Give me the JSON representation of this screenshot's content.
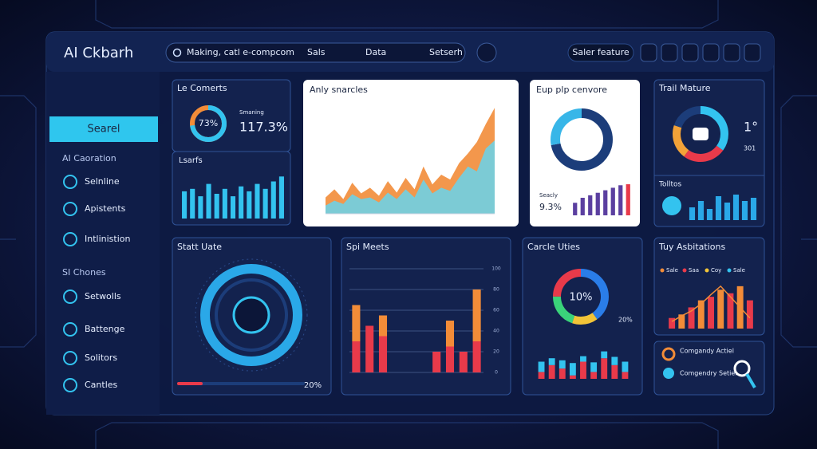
{
  "header": {
    "title": "AI Ckbarh",
    "search": "Making, catl e-compcom",
    "nav": [
      "Sals",
      "Data",
      "Setserh"
    ],
    "button": "Saler feature"
  },
  "sidebar": {
    "active": "Searel",
    "groups": [
      {
        "title": "AI Caoration",
        "items": [
          "Selnline",
          "Apistents",
          "Intlinistion"
        ]
      },
      {
        "title": "SI Chones",
        "items": [
          "Setwolls",
          "Battenge",
          "Solitors",
          "Cantles"
        ]
      }
    ]
  },
  "comments": {
    "title": "Le Comerts",
    "donut": {
      "value": 73,
      "label": "73%"
    },
    "stat_label": "Smaning",
    "stat_value": "117.3%",
    "bars_title": "Lsarfs",
    "bars": {
      "values": [
        55,
        60,
        45,
        70,
        50,
        60,
        45,
        65,
        55,
        70,
        60,
        75,
        85
      ],
      "ylim": [
        0,
        100
      ],
      "color": "#33c3ef"
    }
  },
  "analytics": {
    "title": "Anly snarcles",
    "type": "area",
    "ylim": [
      0,
      140
    ],
    "series": [
      {
        "color": "#f28c38",
        "values": [
          20,
          30,
          18,
          38,
          25,
          32,
          22,
          40,
          26,
          44,
          30,
          58,
          36,
          48,
          42,
          62,
          74,
          88,
          110,
          130
        ]
      },
      {
        "color": "#6fd0e4",
        "values": [
          10,
          16,
          12,
          24,
          18,
          20,
          14,
          26,
          18,
          30,
          20,
          42,
          25,
          32,
          28,
          44,
          58,
          52,
          80,
          90
        ]
      }
    ]
  },
  "convert": {
    "title": "Eup plp cenvore",
    "donut": {
      "values": [
        72,
        28
      ],
      "colors": [
        "#1c3d7a",
        "#38b6e8"
      ]
    },
    "stat_label": "Seacly",
    "stat_value": "9.3%",
    "bars": {
      "values": [
        25,
        35,
        40,
        45,
        50,
        55,
        60,
        62
      ],
      "ylim": [
        0,
        70
      ],
      "colors": [
        "#5b3fa0",
        "#5b3fa0",
        "#5b3fa0",
        "#5b3fa0",
        "#5b3fa0",
        "#5b3fa0",
        "#5b3fa0",
        "#e83a4a"
      ]
    }
  },
  "trail": {
    "title": "Trail Mature",
    "donut": {
      "values": [
        35,
        25,
        20,
        20
      ],
      "colors": [
        "#33c3ef",
        "#e83a4a",
        "#f2a238",
        "#1c3d7a"
      ]
    },
    "stat_values": [
      "1°",
      "301"
    ],
    "bars_title": "Tolltos",
    "bars": {
      "values": [
        40,
        60,
        35,
        75,
        55,
        80,
        60,
        70
      ],
      "ylim": [
        0,
        100
      ],
      "color": "#2aa8e8"
    }
  },
  "status": {
    "title": "Statt Uate",
    "gauge": {
      "value": 20,
      "label": "20%"
    }
  },
  "meets": {
    "title": "Spi Meets",
    "ylim": [
      0,
      100
    ],
    "yticks": [
      0,
      20,
      40,
      60,
      80,
      100
    ],
    "series": [
      {
        "color": "#e83a4a",
        "values": [
          30,
          45,
          35,
          0,
          0,
          0,
          20,
          25,
          20,
          30
        ]
      },
      {
        "color": "#f28c38",
        "values": [
          35,
          0,
          20,
          0,
          0,
          0,
          0,
          25,
          0,
          50
        ]
      }
    ]
  },
  "cycle": {
    "title": "Carcle Uties",
    "donut": {
      "values": [
        40,
        15,
        20,
        25
      ],
      "colors": [
        "#2a7de8",
        "#f2c438",
        "#3ad47a",
        "#e83a4a"
      ]
    },
    "center": "10%",
    "side": "20%",
    "ylim": [
      0,
      50
    ],
    "series": [
      {
        "color": "#e83a4a",
        "values": [
          10,
          20,
          15,
          5,
          25,
          10,
          30,
          20,
          10
        ]
      },
      {
        "color": "#33c3ef",
        "values": [
          15,
          10,
          12,
          18,
          8,
          14,
          10,
          12,
          15
        ]
      }
    ]
  },
  "aspirations": {
    "title": "Tuy Asbitations",
    "legend": [
      {
        "name": "Sale",
        "color": "#f28c38"
      },
      {
        "name": "Saa",
        "color": "#e83a4a"
      },
      {
        "name": "Coy",
        "color": "#f2c438"
      },
      {
        "name": "Sale",
        "color": "#33c3ef"
      }
    ],
    "ylim": [
      0,
      70
    ],
    "bars": {
      "values": [
        15,
        20,
        30,
        40,
        45,
        55,
        50,
        60,
        40
      ],
      "colors": [
        "#e83a4a",
        "#f28c38",
        "#e83a4a",
        "#f28c38",
        "#e83a4a",
        "#f28c38",
        "#e83a4a",
        "#f28c38",
        "#e83a4a"
      ]
    },
    "line": {
      "values": [
        10,
        18,
        25,
        35,
        48,
        60,
        45,
        30,
        15
      ],
      "color": "#f28c38"
    }
  },
  "actions": {
    "items": [
      "Comgandy Actiel",
      "Comgendry Setiel"
    ]
  }
}
